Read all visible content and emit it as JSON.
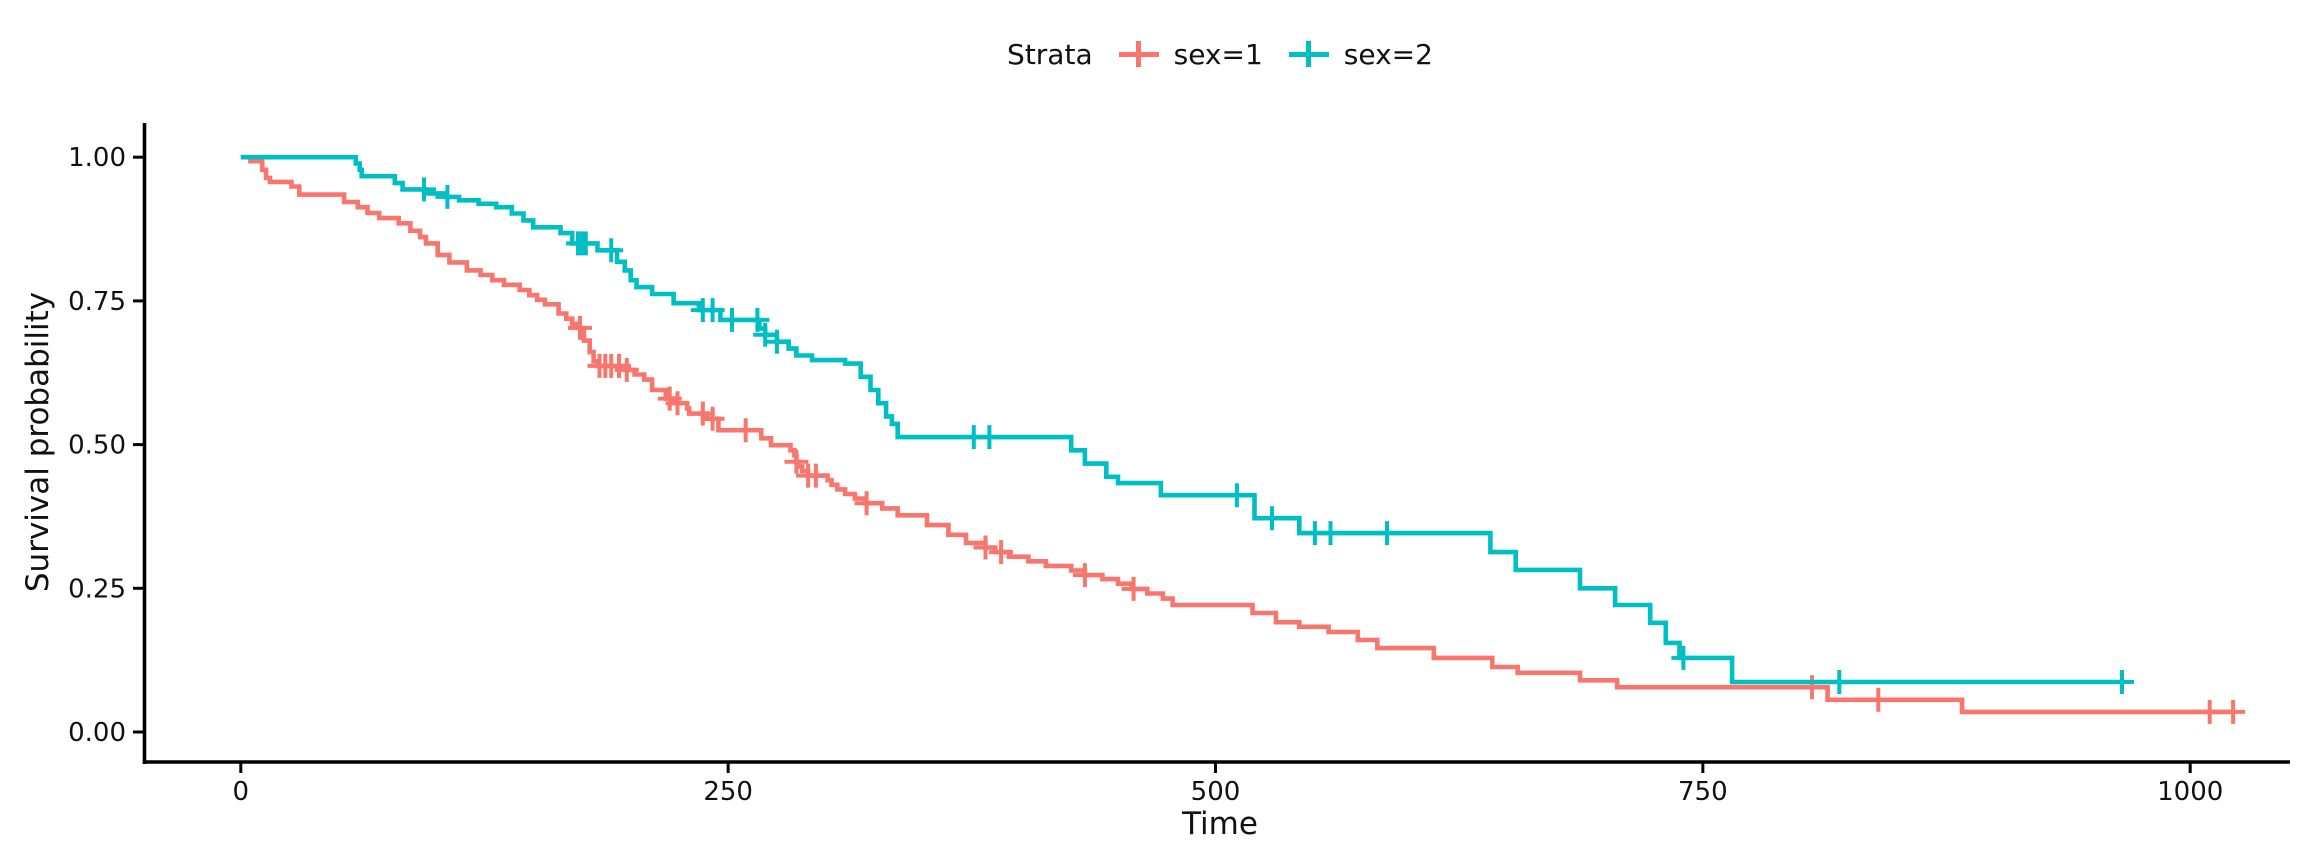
{
  "legend": {
    "title": "Strata",
    "items": [
      {
        "label": "sex=1",
        "color": "#F8766D"
      },
      {
        "label": "sex=2",
        "color": "#00BFC4"
      }
    ]
  },
  "axes": {
    "x": {
      "title": "Time",
      "tick_values": [
        0,
        250,
        500,
        750,
        1000
      ],
      "tick_labels": [
        "0",
        "250",
        "500",
        "750",
        "1000"
      ]
    },
    "y": {
      "title": "Survival probability",
      "tick_values": [
        1.0,
        0.75,
        0.5,
        0.25,
        0.0
      ],
      "tick_labels": [
        "1.00",
        "0.75",
        "0.50",
        "0.25",
        "0.00"
      ]
    }
  },
  "colors": {
    "axis": "#000000",
    "text": "#111111",
    "background": "#ffffff",
    "stratum1": "#F8766D",
    "stratum2": "#00BFC4"
  },
  "chart_data": {
    "type": "line",
    "subtype": "kaplan-meier-step",
    "title": "",
    "xlabel": "Time",
    "ylabel": "Survival probability",
    "xlim": [
      0,
      1050
    ],
    "ylim": [
      0,
      1
    ],
    "grid": false,
    "legend_position": "top-center",
    "legend_title": "Strata",
    "series": [
      {
        "name": "sex=1",
        "color": "#F8766D",
        "end_time": 1022,
        "points": [
          [
            0,
            1.0
          ],
          [
            5,
            0.993
          ],
          [
            11,
            0.978
          ],
          [
            13,
            0.964
          ],
          [
            15,
            0.957
          ],
          [
            26,
            0.949
          ],
          [
            30,
            0.935
          ],
          [
            53,
            0.922
          ],
          [
            60,
            0.913
          ],
          [
            65,
            0.903
          ],
          [
            71,
            0.894
          ],
          [
            81,
            0.885
          ],
          [
            87,
            0.872
          ],
          [
            92,
            0.861
          ],
          [
            95,
            0.85
          ],
          [
            101,
            0.83
          ],
          [
            107,
            0.817
          ],
          [
            116,
            0.803
          ],
          [
            123,
            0.795
          ],
          [
            129,
            0.786
          ],
          [
            135,
            0.778
          ],
          [
            143,
            0.769
          ],
          [
            148,
            0.76
          ],
          [
            152,
            0.752
          ],
          [
            156,
            0.744
          ],
          [
            163,
            0.728
          ],
          [
            167,
            0.719
          ],
          [
            170,
            0.71
          ],
          [
            173,
            0.703
          ],
          [
            176,
            0.681
          ],
          [
            179,
            0.661
          ],
          [
            181,
            0.645
          ],
          [
            183,
            0.637
          ],
          [
            197,
            0.63
          ],
          [
            202,
            0.622
          ],
          [
            207,
            0.613
          ],
          [
            211,
            0.595
          ],
          [
            218,
            0.58
          ],
          [
            222,
            0.572
          ],
          [
            229,
            0.563
          ],
          [
            230,
            0.554
          ],
          [
            239,
            0.545
          ],
          [
            245,
            0.525
          ],
          [
            267,
            0.511
          ],
          [
            272,
            0.499
          ],
          [
            282,
            0.49
          ],
          [
            284,
            0.481
          ],
          [
            285,
            0.47
          ],
          [
            286,
            0.462
          ],
          [
            288,
            0.454
          ],
          [
            291,
            0.446
          ],
          [
            301,
            0.438
          ],
          [
            303,
            0.43
          ],
          [
            306,
            0.422
          ],
          [
            310,
            0.414
          ],
          [
            315,
            0.406
          ],
          [
            320,
            0.398
          ],
          [
            329,
            0.389
          ],
          [
            337,
            0.377
          ],
          [
            352,
            0.36
          ],
          [
            363,
            0.343
          ],
          [
            372,
            0.329
          ],
          [
            382,
            0.321
          ],
          [
            387,
            0.313
          ],
          [
            394,
            0.305
          ],
          [
            404,
            0.297
          ],
          [
            413,
            0.289
          ],
          [
            426,
            0.281
          ],
          [
            433,
            0.273
          ],
          [
            442,
            0.266
          ],
          [
            450,
            0.258
          ],
          [
            457,
            0.249
          ],
          [
            465,
            0.241
          ],
          [
            473,
            0.232
          ],
          [
            478,
            0.221
          ],
          [
            519,
            0.207
          ],
          [
            531,
            0.191
          ],
          [
            543,
            0.183
          ],
          [
            558,
            0.174
          ],
          [
            573,
            0.16
          ],
          [
            583,
            0.146
          ],
          [
            612,
            0.129
          ],
          [
            642,
            0.113
          ],
          [
            655,
            0.103
          ],
          [
            687,
            0.09
          ],
          [
            706,
            0.078
          ],
          [
            814,
            0.056
          ],
          [
            883,
            0.035
          ]
        ],
        "censor_times": [
          174,
          184,
          187,
          190,
          194,
          198,
          220,
          224,
          237,
          242,
          259,
          285,
          291,
          295,
          321,
          382,
          390,
          433,
          458,
          806,
          840,
          1010,
          1022
        ]
      },
      {
        "name": "sex=2",
        "color": "#00BFC4",
        "end_time": 965,
        "points": [
          [
            0,
            1.0
          ],
          [
            59,
            0.989
          ],
          [
            61,
            0.978
          ],
          [
            62,
            0.967
          ],
          [
            79,
            0.955
          ],
          [
            83,
            0.944
          ],
          [
            95,
            0.937
          ],
          [
            105,
            0.931
          ],
          [
            112,
            0.925
          ],
          [
            122,
            0.919
          ],
          [
            131,
            0.913
          ],
          [
            139,
            0.902
          ],
          [
            145,
            0.89
          ],
          [
            150,
            0.878
          ],
          [
            164,
            0.868
          ],
          [
            170,
            0.85
          ],
          [
            183,
            0.838
          ],
          [
            193,
            0.818
          ],
          [
            197,
            0.803
          ],
          [
            200,
            0.786
          ],
          [
            203,
            0.774
          ],
          [
            211,
            0.762
          ],
          [
            222,
            0.746
          ],
          [
            235,
            0.734
          ],
          [
            246,
            0.717
          ],
          [
            266,
            0.702
          ],
          [
            269,
            0.691
          ],
          [
            275,
            0.679
          ],
          [
            281,
            0.667
          ],
          [
            285,
            0.655
          ],
          [
            293,
            0.647
          ],
          [
            310,
            0.641
          ],
          [
            318,
            0.618
          ],
          [
            323,
            0.595
          ],
          [
            327,
            0.572
          ],
          [
            331,
            0.549
          ],
          [
            334,
            0.536
          ],
          [
            337,
            0.513
          ],
          [
            426,
            0.49
          ],
          [
            433,
            0.467
          ],
          [
            444,
            0.444
          ],
          [
            450,
            0.433
          ],
          [
            472,
            0.412
          ],
          [
            520,
            0.372
          ],
          [
            543,
            0.346
          ],
          [
            641,
            0.313
          ],
          [
            654,
            0.282
          ],
          [
            687,
            0.25
          ],
          [
            705,
            0.221
          ],
          [
            723,
            0.19
          ],
          [
            731,
            0.155
          ],
          [
            738,
            0.129
          ],
          [
            765,
            0.087
          ]
        ],
        "censor_times": [
          94,
          106,
          173,
          175,
          177,
          190,
          237,
          242,
          252,
          265,
          269,
          275,
          376,
          384,
          511,
          529,
          551,
          559,
          588,
          740,
          820,
          965
        ]
      }
    ]
  }
}
